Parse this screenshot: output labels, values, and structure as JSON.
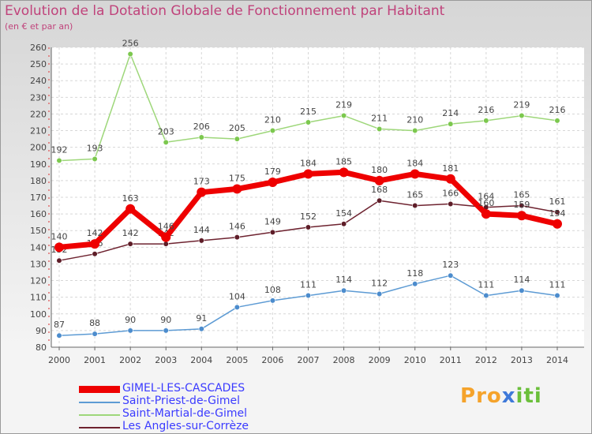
{
  "title": "Evolution de la Dotation Globale de Fonctionnement par Habitant",
  "subtitle": "(en € et par an)",
  "logo": {
    "text": "Proxiti",
    "letters": [
      "P",
      "r",
      "o",
      "x",
      "i",
      "t",
      "i"
    ],
    "colors": [
      "#f5a32b",
      "#f5a32b",
      "#f5a32b",
      "#3f79d9",
      "#6bbf3b",
      "#6bbf3b",
      "#6bbf3b"
    ]
  },
  "chart_data": {
    "type": "line",
    "title": "Evolution de la Dotation Globale de Fonctionnement par Habitant",
    "ylabel": "(en € et par an)",
    "xlabel": "",
    "ylim": [
      80,
      260
    ],
    "yticks": [
      80,
      90,
      100,
      110,
      120,
      130,
      140,
      150,
      160,
      170,
      180,
      190,
      200,
      210,
      220,
      230,
      240,
      250,
      260
    ],
    "x": [
      "2000",
      "2001",
      "2002",
      "2003",
      "2004",
      "2005",
      "2006",
      "2007",
      "2008",
      "2009",
      "2010",
      "2011",
      "2012",
      "2013",
      "2014"
    ],
    "series": [
      {
        "name": "Saint-Priest-de-Gimel",
        "color": "#5d9bd4",
        "marker": "#4c8ccd",
        "values": [
          87,
          88,
          90,
          90,
          91,
          104,
          108,
          111,
          114,
          112,
          118,
          123,
          111,
          114,
          111
        ]
      },
      {
        "name": "Saint-Martial-de-Gimel",
        "color": "#9ed77a",
        "marker": "#7cc84e",
        "values": [
          192,
          193,
          256,
          203,
          206,
          205,
          210,
          215,
          219,
          211,
          210,
          214,
          216,
          219,
          216
        ]
      },
      {
        "name": "Les Angles-sur-Corrèze",
        "color": "#6e2330",
        "marker": "#5e1d28",
        "values": [
          132,
          136,
          142,
          142,
          144,
          146,
          149,
          152,
          154,
          168,
          165,
          166,
          164,
          165,
          161
        ]
      },
      {
        "name": "GIMEL-LES-CASCADES",
        "color": "#ee0000",
        "marker": "#ee0000",
        "values": [
          140,
          142,
          163,
          146,
          173,
          175,
          179,
          184,
          185,
          180,
          184,
          181,
          160,
          159,
          154
        ]
      }
    ],
    "legend": [
      "GIMEL-LES-CASCADES",
      "Saint-Priest-de-Gimel",
      "Saint-Martial-de-Gimel",
      "Les Angles-sur-Corrèze"
    ]
  }
}
